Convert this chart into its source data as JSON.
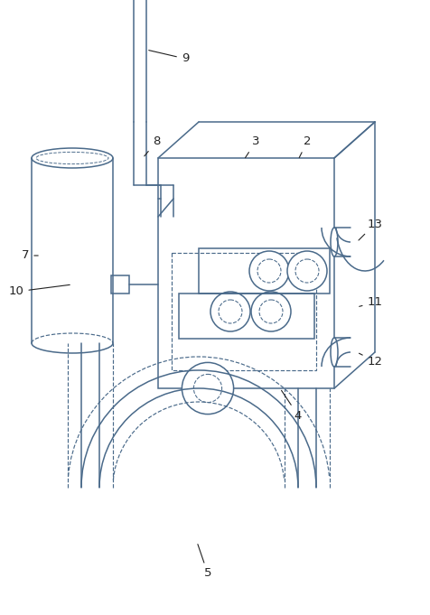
{
  "bg_color": "#ffffff",
  "line_color": "#4a6a8a",
  "line_width": 1.1,
  "dashed_lw": 0.85,
  "label_color": "#222222",
  "label_fontsize": 9.5,
  "fig_width": 4.76,
  "fig_height": 6.81
}
